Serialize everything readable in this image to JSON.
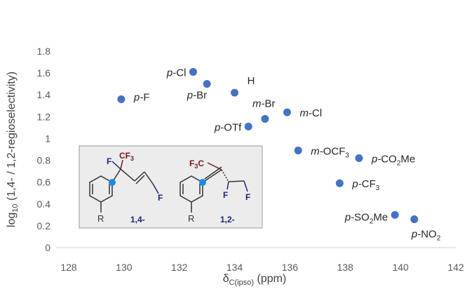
{
  "chart_data": {
    "type": "scatter",
    "xlabel_main": "δ",
    "xlabel_sub": "C(ipso)",
    "xlabel_unit": " (ppm)",
    "ylabel_pre": "log",
    "ylabel_sub": "10",
    "ylabel_post": " (1,4- / 1,2-regioselectivity)",
    "xlim": [
      128,
      142
    ],
    "ylim": [
      0,
      1.8
    ],
    "xticks": [
      "128",
      "130",
      "132",
      "134",
      "136",
      "138",
      "140",
      "142"
    ],
    "yticks": [
      "0",
      "0.2",
      "0.4",
      "0.6",
      "0.8",
      "1",
      "1.2",
      "1.4",
      "1.6",
      "1.8"
    ],
    "grid": false,
    "marker_color": "#4472C4",
    "points": [
      {
        "x": 129.9,
        "y": 1.36,
        "label": "F",
        "prefix": "p-",
        "sub": "",
        "suffix": ""
      },
      {
        "x": 132.5,
        "y": 1.61,
        "label": "Cl",
        "prefix": "p-",
        "sub": "",
        "suffix": ""
      },
      {
        "x": 133.0,
        "y": 1.5,
        "label": "Br",
        "prefix": "p-",
        "sub": "",
        "suffix": ""
      },
      {
        "x": 134.0,
        "y": 1.42,
        "label": "H",
        "prefix": "",
        "sub": "",
        "suffix": ""
      },
      {
        "x": 134.5,
        "y": 1.11,
        "label": "OTf",
        "prefix": "p-",
        "sub": "",
        "suffix": ""
      },
      {
        "x": 135.1,
        "y": 1.18,
        "label": "Br",
        "prefix": "m-",
        "sub": "",
        "suffix": ""
      },
      {
        "x": 135.9,
        "y": 1.24,
        "label": "Cl",
        "prefix": "m-",
        "sub": "",
        "suffix": ""
      },
      {
        "x": 136.3,
        "y": 0.89,
        "label": "OCF",
        "prefix": "m-",
        "sub": "3",
        "suffix": ""
      },
      {
        "x": 138.5,
        "y": 0.82,
        "label": "CO",
        "prefix": "p-",
        "sub": "2",
        "suffix": "Me"
      },
      {
        "x": 137.8,
        "y": 0.59,
        "label": "CF",
        "prefix": "p-",
        "sub": "3",
        "suffix": ""
      },
      {
        "x": 139.8,
        "y": 0.3,
        "label": "SO",
        "prefix": "p-",
        "sub": "2",
        "suffix": "Me"
      },
      {
        "x": 140.5,
        "y": 0.26,
        "label": "NO",
        "prefix": "p-",
        "sub": "2",
        "suffix": ""
      }
    ]
  },
  "inset": {
    "left": {
      "f_top": "F",
      "cf3": "CF",
      "cf3_sub": "3",
      "f_bottom": "F",
      "r": "R",
      "tag": "1,4-"
    },
    "right": {
      "f3c_pre": "F",
      "f3c_sub": "3",
      "f3c_post": "C",
      "f_left": "F",
      "f_right": "F",
      "r": "R",
      "tag": "1,2-"
    }
  }
}
